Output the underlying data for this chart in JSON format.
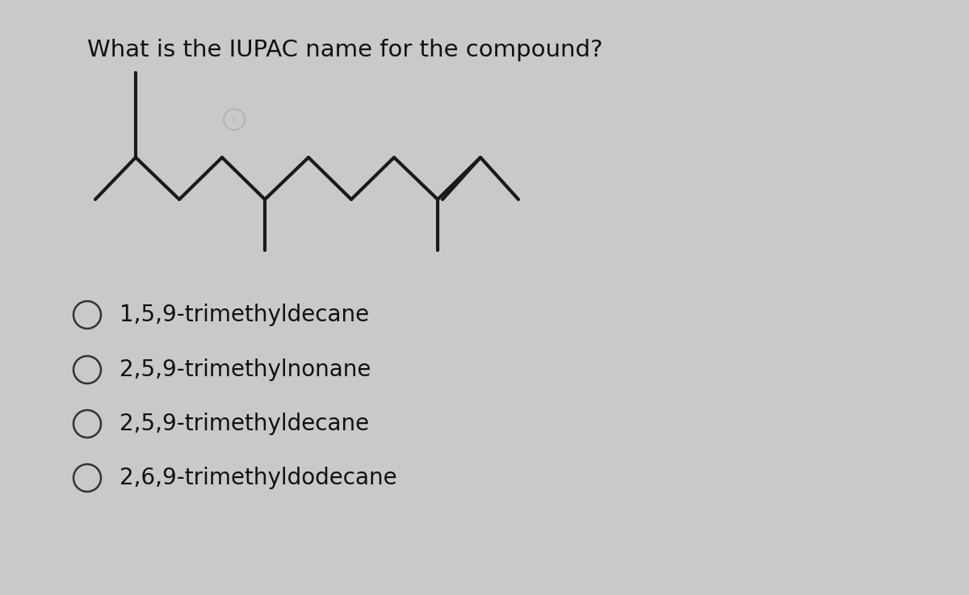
{
  "title": "What is the IUPAC name for the compound?",
  "title_fontsize": 21,
  "bg_color": "#c9c9c9",
  "line_color": "#1a1a1a",
  "line_width": 3.0,
  "options": [
    "1,5,9-trimethyldecane",
    "2,5,9-trimethylnonane",
    "2,5,9-trimethyldecane",
    "2,6,9-trimethyldodecane"
  ],
  "options_fontsize": 20,
  "copyright_color": "#aaaaaa"
}
